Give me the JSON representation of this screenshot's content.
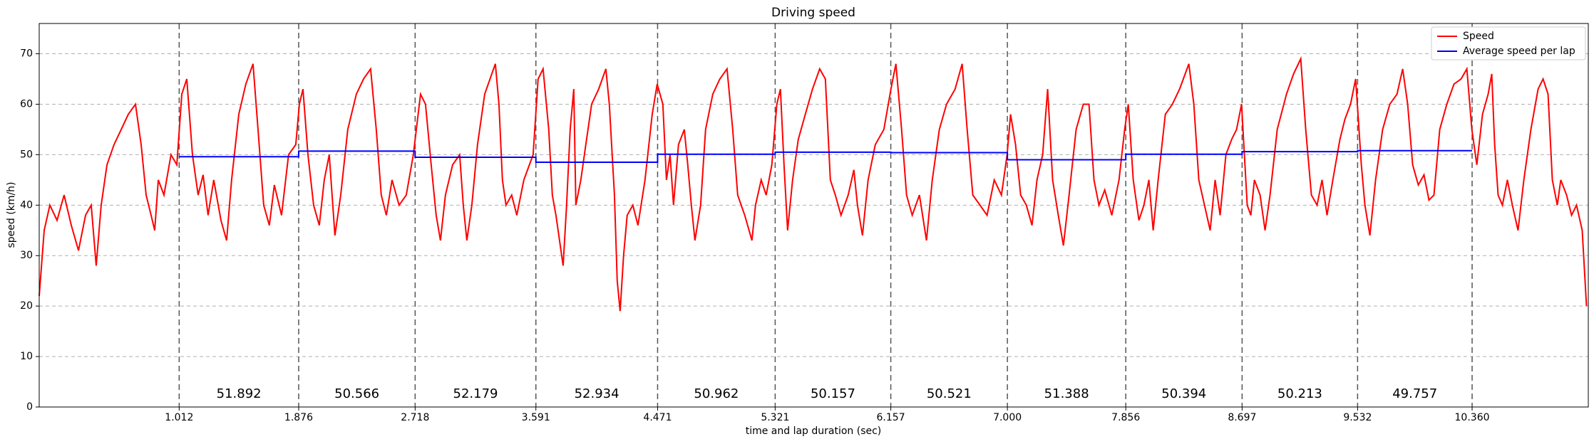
{
  "chart_data": {
    "type": "line",
    "title": "Driving speed",
    "x_label": "time and lap duration (sec)",
    "y_label": "speed (km/h)",
    "xlim": [
      0,
      11.2
    ],
    "ylim": [
      0,
      76
    ],
    "xticks": [
      1.012,
      1.876,
      2.718,
      3.591,
      4.471,
      5.321,
      6.157,
      {
        "value": 7,
        "label": "7.000"
      },
      7.856,
      8.697,
      9.532,
      {
        "value": 10.36,
        "label": "10.360"
      }
    ],
    "yticks": [
      0,
      10,
      20,
      30,
      40,
      50,
      60,
      70
    ],
    "grid": true,
    "legend": "upper right",
    "lap_durations": [
      51.892,
      50.566,
      52.179,
      52.934,
      50.962,
      50.157,
      50.521,
      51.388,
      50.394,
      50.213,
      49.757
    ],
    "series": [
      {
        "name": "Speed",
        "color": "#ff0000",
        "x": [
          0,
          0.036,
          0.077,
          0.129,
          0.18,
          0.232,
          0.284,
          0.335,
          0.376,
          0.412,
          0.448,
          0.49,
          0.541,
          0.593,
          0.644,
          0.696,
          0.737,
          0.773,
          0.809,
          0.835,
          0.861,
          0.902,
          0.953,
          0.995,
          1.031,
          1.067,
          1.108,
          1.149,
          1.185,
          1.221,
          1.262,
          1.314,
          1.355,
          1.391,
          1.443,
          1.494,
          1.546,
          1.582,
          1.623,
          1.664,
          1.7,
          1.752,
          1.803,
          1.855,
          1.881,
          1.907,
          1.943,
          1.984,
          2.025,
          2.061,
          2.097,
          2.138,
          2.18,
          2.231,
          2.293,
          2.345,
          2.396,
          2.437,
          2.473,
          2.51,
          2.551,
          2.602,
          2.654,
          2.705,
          2.757,
          2.793,
          2.834,
          2.87,
          2.901,
          2.937,
          2.989,
          3.04,
          3.066,
          3.092,
          3.128,
          3.169,
          3.221,
          3.272,
          3.298,
          3.324,
          3.349,
          3.375,
          3.416,
          3.453,
          3.504,
          3.571,
          3.607,
          3.643,
          3.684,
          3.71,
          3.736,
          3.788,
          3.813,
          3.839,
          3.865,
          3.88,
          3.916,
          3.952,
          3.994,
          4.045,
          4.097,
          4.122,
          4.159,
          4.179,
          4.2,
          4.225,
          4.251,
          4.292,
          4.329,
          4.38,
          4.432,
          4.468,
          4.509,
          4.535,
          4.561,
          4.586,
          4.622,
          4.664,
          4.689,
          4.715,
          4.741,
          4.782,
          4.818,
          4.87,
          4.921,
          4.973,
          5.014,
          5.05,
          5.101,
          5.153,
          5.179,
          5.22,
          5.256,
          5.297,
          5.333,
          5.359,
          5.385,
          5.411,
          5.447,
          5.488,
          5.539,
          5.591,
          5.643,
          5.684,
          5.72,
          5.756,
          5.797,
          5.849,
          5.89,
          5.916,
          5.952,
          5.993,
          6.045,
          6.107,
          6.158,
          6.194,
          6.235,
          6.271,
          6.312,
          6.364,
          6.415,
          6.457,
          6.508,
          6.56,
          6.622,
          6.673,
          6.709,
          6.75,
          6.802,
          6.853,
          6.905,
          6.957,
          6.998,
          7.023,
          7.059,
          7.096,
          7.137,
          7.178,
          7.214,
          7.255,
          7.291,
          7.327,
          7.368,
          7.405,
          7.446,
          7.497,
          7.549,
          7.59,
          7.626,
          7.662,
          7.704,
          7.755,
          7.807,
          7.848,
          7.874,
          7.91,
          7.951,
          7.987,
          8.023,
          8.054,
          8.09,
          8.142,
          8.193,
          8.245,
          8.312,
          8.348,
          8.384,
          8.425,
          8.466,
          8.502,
          8.538,
          8.58,
          8.621,
          8.657,
          8.693,
          8.734,
          8.76,
          8.786,
          8.827,
          8.863,
          8.899,
          8.951,
          9.018,
          9.069,
          9.121,
          9.157,
          9.198,
          9.239,
          9.275,
          9.311,
          9.353,
          9.404,
          9.44,
          9.481,
          9.518,
          9.559,
          9.585,
          9.621,
          9.662,
          9.713,
          9.765,
          9.817,
          9.858,
          9.894,
          9.93,
          9.971,
          10.012,
          10.048,
          10.084,
          10.126,
          10.177,
          10.229,
          10.28,
          10.322,
          10.358,
          10.394,
          10.435,
          10.476,
          10.502,
          10.523,
          10.548,
          10.579,
          10.615,
          10.651,
          10.692,
          10.734,
          10.785,
          10.837,
          10.873,
          10.909,
          10.94,
          10.976,
          11.001,
          11.043,
          11.079,
          11.115,
          11.156,
          11.187
        ],
        "values": [
          22,
          35,
          40,
          37,
          42,
          36,
          31,
          38,
          40,
          28,
          40,
          48,
          52,
          55,
          58,
          60,
          52,
          42,
          38,
          35,
          45,
          42,
          50,
          48,
          62,
          65,
          50,
          42,
          46,
          38,
          45,
          37,
          33,
          45,
          58,
          64,
          68,
          55,
          40,
          36,
          44,
          38,
          50,
          52,
          60,
          63,
          50,
          40,
          36,
          45,
          50,
          34,
          42,
          55,
          62,
          65,
          67,
          55,
          42,
          38,
          45,
          40,
          42,
          50,
          62,
          60,
          48,
          38,
          33,
          42,
          48,
          50,
          40,
          33,
          40,
          52,
          62,
          66,
          68,
          60,
          45,
          40,
          42,
          38,
          45,
          50,
          65,
          67,
          55,
          42,
          38,
          28,
          40,
          55,
          63,
          40,
          45,
          52,
          60,
          63,
          67,
          60,
          42,
          25,
          19,
          30,
          38,
          40,
          36,
          45,
          58,
          64,
          60,
          45,
          50,
          40,
          52,
          55,
          48,
          40,
          33,
          40,
          55,
          62,
          65,
          67,
          55,
          42,
          38,
          33,
          40,
          45,
          42,
          48,
          60,
          63,
          48,
          35,
          45,
          53,
          58,
          63,
          67,
          65,
          45,
          42,
          38,
          42,
          47,
          40,
          34,
          45,
          52,
          55,
          63,
          68,
          55,
          42,
          38,
          42,
          33,
          45,
          55,
          60,
          63,
          68,
          55,
          42,
          40,
          38,
          45,
          42,
          50,
          58,
          52,
          42,
          40,
          36,
          45,
          50,
          63,
          45,
          38,
          32,
          42,
          55,
          60,
          60,
          45,
          40,
          43,
          38,
          45,
          55,
          60,
          45,
          37,
          40,
          45,
          35,
          45,
          58,
          60,
          63,
          68,
          60,
          45,
          40,
          35,
          45,
          38,
          50,
          53,
          55,
          60,
          40,
          38,
          45,
          42,
          35,
          42,
          55,
          62,
          66,
          69,
          55,
          42,
          40,
          45,
          38,
          45,
          53,
          57,
          60,
          65,
          48,
          40,
          34,
          45,
          55,
          60,
          62,
          67,
          60,
          48,
          44,
          46,
          41,
          42,
          55,
          60,
          64,
          65,
          67,
          55,
          48,
          58,
          62,
          66,
          52,
          42,
          40,
          45,
          40,
          35,
          45,
          55,
          63,
          65,
          62,
          45,
          40,
          45,
          42,
          38,
          40,
          35,
          20
        ]
      },
      {
        "name": "Average speed per lap",
        "color": "#0000ff",
        "x": [
          1.012,
          1.876,
          1.876,
          2.718,
          2.718,
          3.591,
          3.591,
          4.471,
          4.471,
          5.321,
          5.321,
          6.157,
          6.157,
          7,
          7,
          7.856,
          7.856,
          8.697,
          8.697,
          9.532,
          9.532,
          10.36
        ],
        "values": [
          49.6,
          49.6,
          50.7,
          50.7,
          49.5,
          49.5,
          48.5,
          48.5,
          50.1,
          50.1,
          50.5,
          50.5,
          50.4,
          50.4,
          49,
          49,
          50.1,
          50.1,
          50.6,
          50.6,
          50.8,
          50.8
        ]
      }
    ]
  }
}
